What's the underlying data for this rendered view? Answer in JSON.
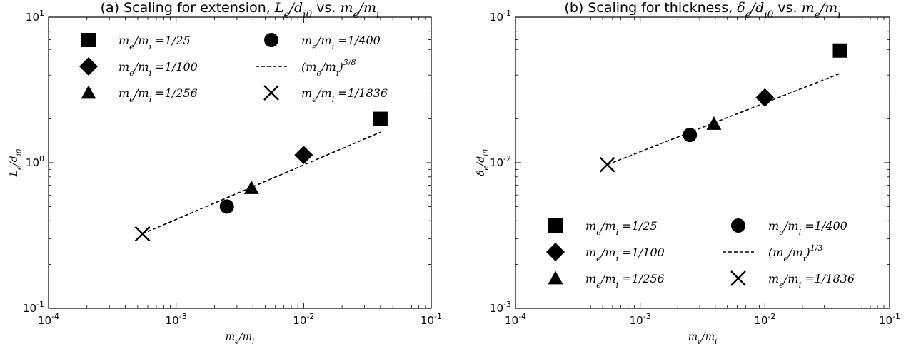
{
  "chart_data": [
    {
      "type": "scatter",
      "title_prefix": "(a) Scaling for extension, ",
      "title_quantity": "L_e/d_i0",
      "title_vs": " vs. ",
      "title_ratio": "m_e/m_i",
      "xlabel": "m_e/m_i",
      "ylabel": "L_e/d_i0",
      "xscale": "log",
      "yscale": "log",
      "xlim": [
        0.0001,
        0.1
      ],
      "ylim": [
        0.1,
        10
      ],
      "xticks": [
        {
          "base": "10",
          "exp": "-4"
        },
        {
          "base": "10",
          "exp": "-3"
        },
        {
          "base": "10",
          "exp": "-2"
        },
        {
          "base": "10",
          "exp": "-1"
        }
      ],
      "yticks": [
        {
          "base": "10",
          "exp": "-1"
        },
        {
          "base": "10",
          "exp": "0"
        },
        {
          "base": "10",
          "exp": "1"
        }
      ],
      "legend_position": "top",
      "series": [
        {
          "name": "m_e/m_i =1/25",
          "marker": "square",
          "x": 0.04,
          "y": 2.0
        },
        {
          "name": "m_e/m_i =1/100",
          "marker": "diamond",
          "x": 0.01,
          "y": 1.13
        },
        {
          "name": "m_e/m_i =1/256",
          "marker": "triangle",
          "x": 0.0039,
          "y": 0.67
        },
        {
          "name": "m_e/m_i =1/400",
          "marker": "circle",
          "x": 0.0025,
          "y": 0.5
        },
        {
          "name": "m_e/m_i =1/1836",
          "marker": "x",
          "x": 0.000545,
          "y": 0.325
        }
      ],
      "fit": {
        "name": "(m_e/m_i)",
        "exponent": "3/8",
        "x": [
          0.000545,
          0.04
        ],
        "y": [
          0.325,
          1.62
        ]
      }
    },
    {
      "type": "scatter",
      "title_prefix": "(b) Scaling for thickness, ",
      "title_quantity": "δ_e/d_i0",
      "title_vs": " vs. ",
      "title_ratio": "m_e/m_i",
      "xlabel": "m_e/m_i",
      "ylabel": "δ_e/d_i0",
      "xscale": "log",
      "yscale": "log",
      "xlim": [
        0.0001,
        0.1
      ],
      "ylim": [
        0.001,
        0.1
      ],
      "xticks": [
        {
          "base": "10",
          "exp": "-4"
        },
        {
          "base": "10",
          "exp": "-3"
        },
        {
          "base": "10",
          "exp": "-2"
        },
        {
          "base": "10",
          "exp": "-1"
        }
      ],
      "yticks": [
        {
          "base": "10",
          "exp": "-3"
        },
        {
          "base": "10",
          "exp": "-2"
        },
        {
          "base": "10",
          "exp": "-1"
        }
      ],
      "legend_position": "bottom",
      "series": [
        {
          "name": "m_e/m_i =1/25",
          "marker": "square",
          "x": 0.04,
          "y": 0.059
        },
        {
          "name": "m_e/m_i =1/100",
          "marker": "diamond",
          "x": 0.01,
          "y": 0.028
        },
        {
          "name": "m_e/m_i =1/256",
          "marker": "triangle",
          "x": 0.0039,
          "y": 0.0185
        },
        {
          "name": "m_e/m_i =1/400",
          "marker": "circle",
          "x": 0.0025,
          "y": 0.0155
        },
        {
          "name": "m_e/m_i =1/1836",
          "marker": "x",
          "x": 0.000545,
          "y": 0.0097
        }
      ],
      "fit": {
        "name": "(m_e/m_i)",
        "exponent": "1/3",
        "x": [
          0.000545,
          0.04
        ],
        "y": [
          0.0097,
          0.041
        ]
      }
    }
  ]
}
